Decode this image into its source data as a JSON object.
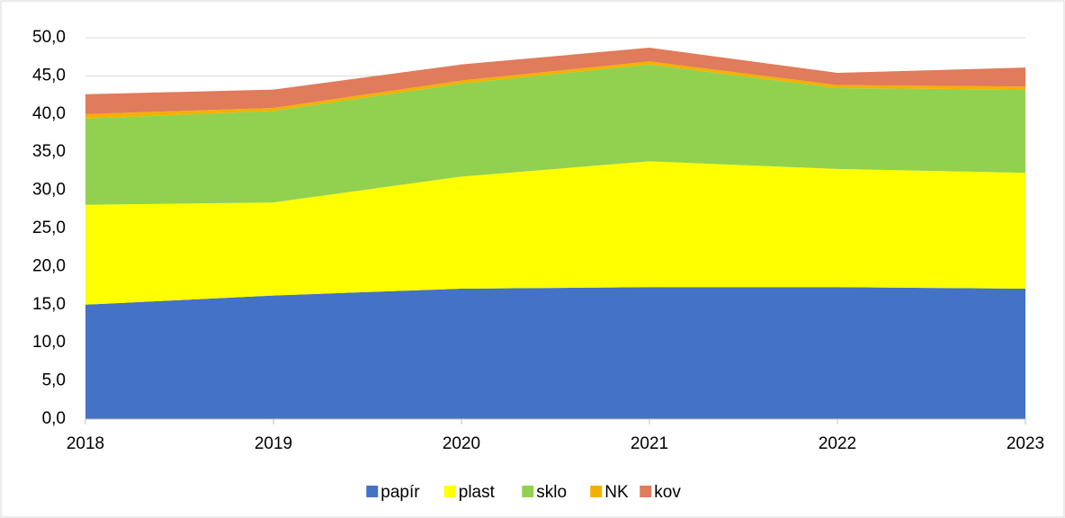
{
  "chart_data": {
    "type": "stacked_area",
    "categories": [
      "2018",
      "2019",
      "2020",
      "2021",
      "2022",
      "2023"
    ],
    "series": [
      {
        "name": "papír",
        "color": "#4472c4",
        "values": [
          15.0,
          16.2,
          17.1,
          17.3,
          17.3,
          17.1
        ]
      },
      {
        "name": "plast",
        "color": "#ffff00",
        "values": [
          13.1,
          12.2,
          14.7,
          16.5,
          15.5,
          15.2
        ]
      },
      {
        "name": "sklo",
        "color": "#92d050",
        "values": [
          11.3,
          12.0,
          12.2,
          12.7,
          10.6,
          10.9
        ]
      },
      {
        "name": "NK",
        "color": "#f4b000",
        "values": [
          0.6,
          0.4,
          0.4,
          0.4,
          0.4,
          0.4
        ]
      },
      {
        "name": "kov",
        "color": "#e07b5b",
        "values": [
          2.6,
          2.4,
          2.1,
          1.8,
          1.6,
          2.5
        ]
      }
    ],
    "ylim": [
      0,
      50
    ],
    "yticks": [
      {
        "value": 0,
        "label": "0,0"
      },
      {
        "value": 5,
        "label": "5,0"
      },
      {
        "value": 10,
        "label": "10,0"
      },
      {
        "value": 15,
        "label": "15,0"
      },
      {
        "value": 20,
        "label": "20,0"
      },
      {
        "value": 25,
        "label": "25,0"
      },
      {
        "value": 30,
        "label": "30,0"
      },
      {
        "value": 35,
        "label": "35,0"
      },
      {
        "value": 40,
        "label": "40,0"
      },
      {
        "value": 45,
        "label": "45,0"
      },
      {
        "value": 50,
        "label": "50,0"
      }
    ],
    "grid": true,
    "legend": "bottom"
  }
}
